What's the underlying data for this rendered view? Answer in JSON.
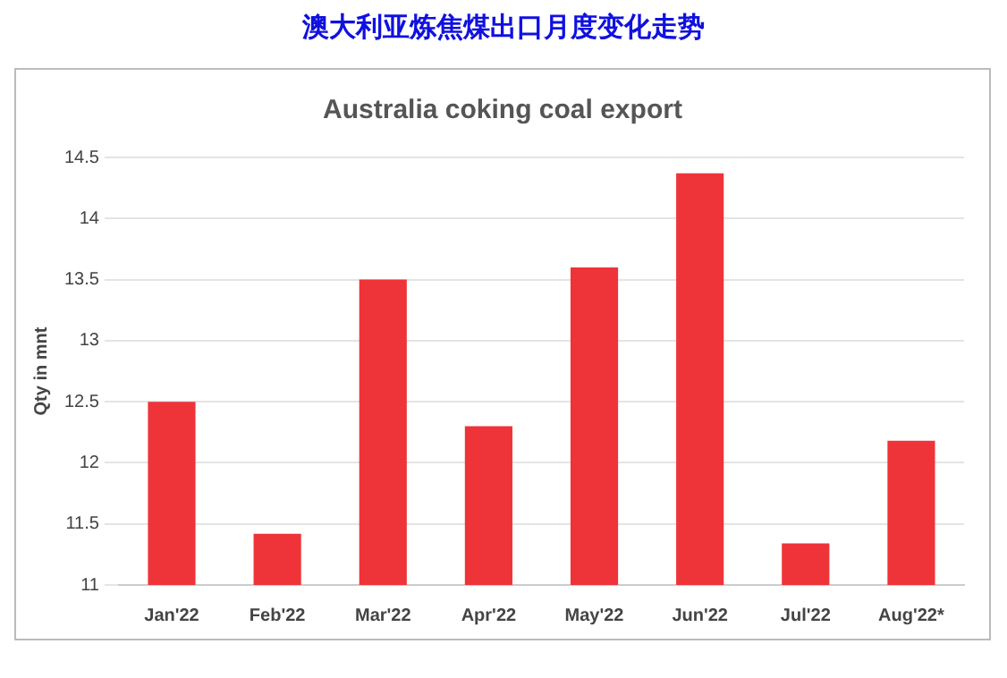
{
  "chart_data": {
    "type": "bar",
    "title": "澳大利亚炼焦煤出口月度变化走势",
    "subtitle": "Australia coking coal export",
    "ylabel": "Qty in mnt",
    "categories": [
      "Jan'22",
      "Feb'22",
      "Mar'22",
      "Apr'22",
      "May'22",
      "Jun'22",
      "Jul'22",
      "Aug'22*"
    ],
    "values": [
      12.5,
      11.42,
      13.5,
      12.3,
      13.6,
      14.37,
      11.34,
      12.18
    ],
    "color": "#ee3438",
    "ylim": [
      11,
      14.5
    ],
    "yticks": [
      11,
      11.5,
      12,
      12.5,
      13,
      13.5,
      14,
      14.5
    ],
    "grid": "y",
    "legend": false
  }
}
